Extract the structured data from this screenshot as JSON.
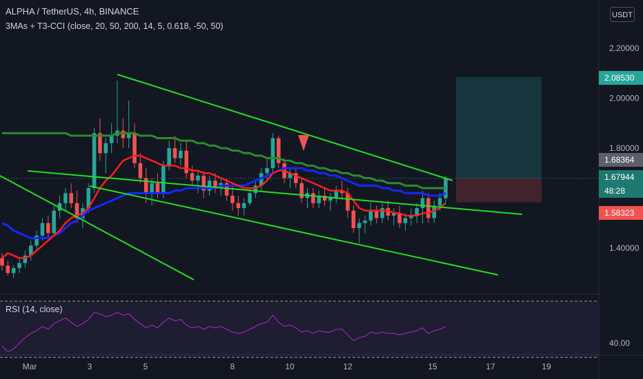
{
  "header": {
    "symbol_line": "ALPHA / TetherUS, 4h, BINANCE",
    "indicator_line": "3MAs + T3-CCI (close, 20, 50, 200, 14, 5, 0.618, -50, 50)",
    "currency": "USDT"
  },
  "rsi": {
    "label": "RSI (14, close)"
  },
  "price_tags": [
    {
      "value": "2.08530",
      "color": "#26a69a"
    },
    {
      "value": "1.68364",
      "color": "#5d606b"
    },
    {
      "value": "1.67944",
      "color": "#1e7a70"
    },
    {
      "value": "48:28",
      "color": "#1e7a70"
    },
    {
      "value": "1.58323",
      "color": "#ef5350"
    }
  ],
  "chart_data": {
    "type": "candlestick",
    "title": "ALPHA / TetherUS, 4h, BINANCE",
    "x_tick_labels": [
      "Mar",
      "3",
      "5",
      "8",
      "10",
      "12",
      "15",
      "17",
      "19"
    ],
    "y_tick_labels": [
      "2.20000",
      "2.00000",
      "1.80000",
      "1.40000"
    ],
    "ylim": [
      1.25,
      2.3
    ],
    "rsi_tick_labels": [
      "40.00"
    ],
    "series": [
      {
        "name": "MA 20",
        "color": "#ff1e1e"
      },
      {
        "name": "MA 50",
        "color": "#1428ff"
      },
      {
        "name": "MA 200",
        "color": "#2e8b2e"
      },
      {
        "name": "RSI",
        "color": "#9c27b0"
      }
    ],
    "candles_ohlc": [
      [
        1.36,
        1.38,
        1.31,
        1.33
      ],
      [
        1.33,
        1.35,
        1.29,
        1.3
      ],
      [
        1.3,
        1.33,
        1.28,
        1.32
      ],
      [
        1.32,
        1.36,
        1.3,
        1.34
      ],
      [
        1.34,
        1.39,
        1.32,
        1.37
      ],
      [
        1.37,
        1.43,
        1.35,
        1.41
      ],
      [
        1.41,
        1.47,
        1.39,
        1.45
      ],
      [
        1.45,
        1.52,
        1.43,
        1.5
      ],
      [
        1.5,
        1.53,
        1.44,
        1.46
      ],
      [
        1.46,
        1.57,
        1.45,
        1.55
      ],
      [
        1.55,
        1.61,
        1.52,
        1.58
      ],
      [
        1.58,
        1.64,
        1.55,
        1.62
      ],
      [
        1.62,
        1.66,
        1.56,
        1.58
      ],
      [
        1.58,
        1.63,
        1.5,
        1.52
      ],
      [
        1.52,
        1.58,
        1.48,
        1.56
      ],
      [
        1.56,
        1.66,
        1.54,
        1.64
      ],
      [
        1.64,
        1.88,
        1.62,
        1.86
      ],
      [
        1.86,
        1.92,
        1.75,
        1.78
      ],
      [
        1.78,
        1.84,
        1.7,
        1.82
      ],
      [
        1.82,
        1.9,
        1.78,
        1.85
      ],
      [
        1.85,
        2.07,
        1.82,
        1.87
      ],
      [
        1.87,
        1.92,
        1.8,
        1.84
      ],
      [
        1.84,
        1.99,
        1.8,
        1.86
      ],
      [
        1.86,
        1.9,
        1.72,
        1.74
      ],
      [
        1.74,
        1.78,
        1.66,
        1.68
      ],
      [
        1.68,
        1.72,
        1.58,
        1.62
      ],
      [
        1.62,
        1.68,
        1.57,
        1.66
      ],
      [
        1.66,
        1.7,
        1.6,
        1.62
      ],
      [
        1.62,
        1.75,
        1.6,
        1.73
      ],
      [
        1.73,
        1.83,
        1.71,
        1.8
      ],
      [
        1.8,
        1.85,
        1.74,
        1.76
      ],
      [
        1.76,
        1.82,
        1.73,
        1.79
      ],
      [
        1.79,
        1.83,
        1.68,
        1.7
      ],
      [
        1.7,
        1.73,
        1.65,
        1.67
      ],
      [
        1.67,
        1.71,
        1.62,
        1.69
      ],
      [
        1.69,
        1.71,
        1.6,
        1.63
      ],
      [
        1.63,
        1.69,
        1.61,
        1.67
      ],
      [
        1.67,
        1.7,
        1.62,
        1.64
      ],
      [
        1.64,
        1.68,
        1.61,
        1.66
      ],
      [
        1.66,
        1.68,
        1.59,
        1.61
      ],
      [
        1.61,
        1.66,
        1.55,
        1.58
      ],
      [
        1.58,
        1.61,
        1.53,
        1.56
      ],
      [
        1.56,
        1.6,
        1.53,
        1.58
      ],
      [
        1.58,
        1.64,
        1.57,
        1.62
      ],
      [
        1.62,
        1.67,
        1.6,
        1.65
      ],
      [
        1.65,
        1.72,
        1.63,
        1.7
      ],
      [
        1.7,
        1.76,
        1.67,
        1.72
      ],
      [
        1.72,
        1.86,
        1.7,
        1.84
      ],
      [
        1.84,
        1.85,
        1.72,
        1.74
      ],
      [
        1.74,
        1.76,
        1.66,
        1.68
      ],
      [
        1.68,
        1.72,
        1.64,
        1.7
      ],
      [
        1.7,
        1.72,
        1.64,
        1.66
      ],
      [
        1.66,
        1.68,
        1.58,
        1.6
      ],
      [
        1.6,
        1.64,
        1.56,
        1.62
      ],
      [
        1.62,
        1.64,
        1.56,
        1.58
      ],
      [
        1.58,
        1.63,
        1.56,
        1.61
      ],
      [
        1.61,
        1.64,
        1.57,
        1.59
      ],
      [
        1.59,
        1.62,
        1.55,
        1.6
      ],
      [
        1.6,
        1.65,
        1.58,
        1.63
      ],
      [
        1.63,
        1.67,
        1.6,
        1.62
      ],
      [
        1.62,
        1.64,
        1.52,
        1.55
      ],
      [
        1.55,
        1.57,
        1.46,
        1.48
      ],
      [
        1.48,
        1.52,
        1.42,
        1.5
      ],
      [
        1.5,
        1.53,
        1.46,
        1.51
      ],
      [
        1.51,
        1.58,
        1.49,
        1.55
      ],
      [
        1.55,
        1.57,
        1.5,
        1.52
      ],
      [
        1.52,
        1.58,
        1.5,
        1.56
      ],
      [
        1.56,
        1.59,
        1.51,
        1.53
      ],
      [
        1.53,
        1.56,
        1.49,
        1.54
      ],
      [
        1.54,
        1.57,
        1.48,
        1.5
      ],
      [
        1.5,
        1.54,
        1.47,
        1.52
      ],
      [
        1.52,
        1.56,
        1.49,
        1.53
      ],
      [
        1.53,
        1.58,
        1.5,
        1.56
      ],
      [
        1.56,
        1.63,
        1.5,
        1.6
      ],
      [
        1.6,
        1.62,
        1.5,
        1.52
      ],
      [
        1.52,
        1.59,
        1.5,
        1.57
      ],
      [
        1.57,
        1.62,
        1.55,
        1.6
      ],
      [
        1.6,
        1.69,
        1.58,
        1.68
      ]
    ],
    "ma20": [
      [
        1.36,
        1.38,
        1.37,
        1.36,
        1.36,
        1.37,
        1.39,
        1.41,
        1.43,
        1.45,
        1.47,
        1.5,
        1.52,
        1.53,
        1.54,
        1.56,
        1.6,
        1.64,
        1.67,
        1.69,
        1.72,
        1.75,
        1.76,
        1.77,
        1.77,
        1.76,
        1.75,
        1.74,
        1.73,
        1.73,
        1.73,
        1.72,
        1.72,
        1.71,
        1.71,
        1.7,
        1.7,
        1.69,
        1.68,
        1.67,
        1.66,
        1.65,
        1.64,
        1.64,
        1.64,
        1.65,
        1.67,
        1.7,
        1.71,
        1.71,
        1.7,
        1.69,
        1.68,
        1.67,
        1.66,
        1.65,
        1.64,
        1.63,
        1.63,
        1.63,
        1.62,
        1.59,
        1.56,
        1.55,
        1.55,
        1.55,
        1.55,
        1.55,
        1.54,
        1.54,
        1.53,
        1.53,
        1.53,
        1.54,
        1.54,
        1.55,
        1.56,
        1.58
      ]
    ],
    "ma50": [
      [
        1.5,
        1.49,
        1.47,
        1.46,
        1.45,
        1.44,
        1.44,
        1.44,
        1.44,
        1.45,
        1.46,
        1.48,
        1.5,
        1.51,
        1.53,
        1.55,
        1.56,
        1.57,
        1.58,
        1.59,
        1.6,
        1.61,
        1.62,
        1.62,
        1.62,
        1.62,
        1.62,
        1.62,
        1.62,
        1.62,
        1.63,
        1.63,
        1.64,
        1.64,
        1.64,
        1.64,
        1.64,
        1.64,
        1.65,
        1.65,
        1.65,
        1.65,
        1.65,
        1.66,
        1.67,
        1.68,
        1.69,
        1.7,
        1.71,
        1.72,
        1.72,
        1.72,
        1.72,
        1.71,
        1.71,
        1.7,
        1.7,
        1.69,
        1.69,
        1.68,
        1.67,
        1.66,
        1.65,
        1.65,
        1.65,
        1.65,
        1.64,
        1.64,
        1.63,
        1.63,
        1.62,
        1.62,
        1.62,
        1.62,
        1.61,
        1.61,
        1.61,
        1.62
      ]
    ],
    "ma200": [
      [
        1.86,
        1.86,
        1.86,
        1.86,
        1.86,
        1.86,
        1.86,
        1.86,
        1.86,
        1.86,
        1.86,
        1.86,
        1.85,
        1.85,
        1.85,
        1.85,
        1.85,
        1.85,
        1.85,
        1.85,
        1.86,
        1.86,
        1.86,
        1.86,
        1.85,
        1.85,
        1.85,
        1.84,
        1.84,
        1.84,
        1.84,
        1.83,
        1.83,
        1.83,
        1.82,
        1.82,
        1.81,
        1.81,
        1.8,
        1.8,
        1.79,
        1.79,
        1.78,
        1.78,
        1.77,
        1.77,
        1.76,
        1.76,
        1.76,
        1.75,
        1.75,
        1.74,
        1.74,
        1.73,
        1.73,
        1.72,
        1.72,
        1.71,
        1.71,
        1.7,
        1.7,
        1.69,
        1.69,
        1.68,
        1.68,
        1.67,
        1.67,
        1.66,
        1.66,
        1.66,
        1.65,
        1.65,
        1.65,
        1.64,
        1.64,
        1.64,
        1.64,
        1.64
      ]
    ],
    "rsi_values": [
      38,
      34,
      36,
      40,
      44,
      47,
      49,
      52,
      50,
      54,
      56,
      58,
      55,
      52,
      54,
      57,
      62,
      61,
      59,
      60,
      62,
      60,
      61,
      57,
      54,
      51,
      53,
      51,
      55,
      58,
      56,
      57,
      53,
      51,
      52,
      50,
      52,
      51,
      52,
      50,
      48,
      47,
      48,
      50,
      52,
      54,
      55,
      60,
      55,
      52,
      53,
      51,
      48,
      49,
      47,
      49,
      48,
      48,
      50,
      50,
      46,
      42,
      44,
      45,
      48,
      47,
      48,
      47,
      47,
      46,
      47,
      48,
      49,
      51,
      47,
      49,
      50,
      52
    ]
  }
}
